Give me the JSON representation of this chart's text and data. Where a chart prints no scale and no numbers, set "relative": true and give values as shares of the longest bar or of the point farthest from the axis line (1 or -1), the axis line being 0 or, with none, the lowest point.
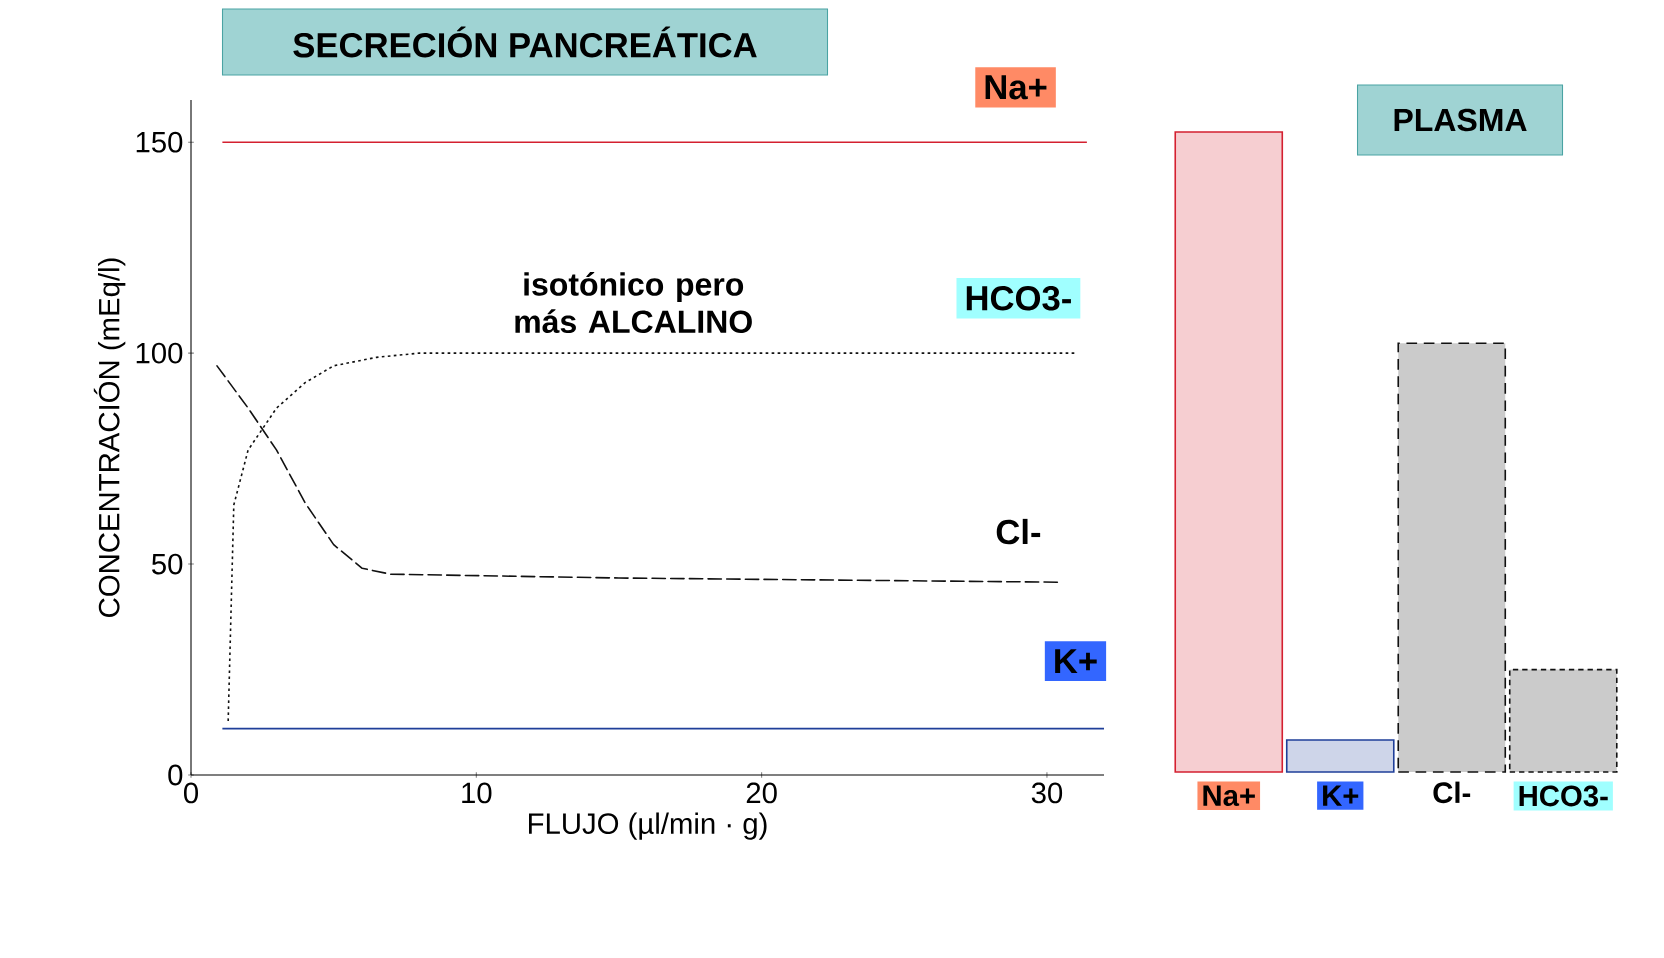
{
  "chart_data": [
    {
      "type": "line",
      "title": "SECRECIÓN PANCREÁTICA",
      "xlabel": "FLUJO (µl/min · g)",
      "ylabel": "CONCENTRACIÓN (mEq/l)",
      "xlim": [
        0,
        32
      ],
      "ylim": [
        0,
        160
      ],
      "xticks": [
        0,
        10,
        20,
        30
      ],
      "yticks": [
        0,
        50,
        100,
        150
      ],
      "annotations": [
        "isotónico pero más ALCALINO"
      ],
      "series": [
        {
          "name": "Na+",
          "color": "#d42030",
          "line_style": "solid",
          "x": [
            1.1,
            31.4
          ],
          "values": [
            150,
            150
          ]
        },
        {
          "name": "HCO3-",
          "color": "#111111",
          "line_style": "dotted",
          "x": [
            1.3,
            1.5,
            2,
            3,
            4,
            5,
            6.5,
            8,
            15,
            31
          ],
          "values": [
            12,
            64,
            77,
            87,
            93,
            97,
            99,
            100,
            100,
            100
          ]
        },
        {
          "name": "Cl-",
          "color": "#111111",
          "line_style": "dashed",
          "x": [
            0.8,
            2,
            3,
            4,
            5,
            6,
            7,
            15,
            30.5
          ],
          "values": [
            98,
            87,
            77,
            64.5,
            54.6,
            49,
            47.6,
            46.7,
            45.7
          ]
        },
        {
          "name": "K+",
          "color": "#1f3f99",
          "line_style": "solid",
          "x": [
            1.1,
            32
          ],
          "values": [
            11,
            11
          ]
        }
      ]
    },
    {
      "type": "bar",
      "title": "PLASMA",
      "relative": true,
      "categories": [
        "Na+",
        "K+",
        "Cl-",
        "HCO3-"
      ],
      "values": [
        1,
        0.05,
        0.67,
        0.16
      ],
      "colors": [
        "#d42030",
        "#1f3f99",
        "#111111",
        "#111111"
      ]
    }
  ]
}
